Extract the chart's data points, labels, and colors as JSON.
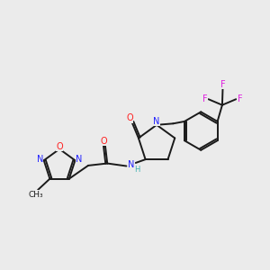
{
  "background_color": "#ebebeb",
  "bond_color": "#1a1a1a",
  "bond_width": 1.4,
  "colors": {
    "N": "#2020ff",
    "O": "#ff2020",
    "F": "#e020e0",
    "H": "#40b0b0",
    "C": "#1a1a1a"
  },
  "figsize": [
    3.0,
    3.0
  ],
  "dpi": 100,
  "xlim": [
    0,
    10
  ],
  "ylim": [
    0,
    10
  ]
}
